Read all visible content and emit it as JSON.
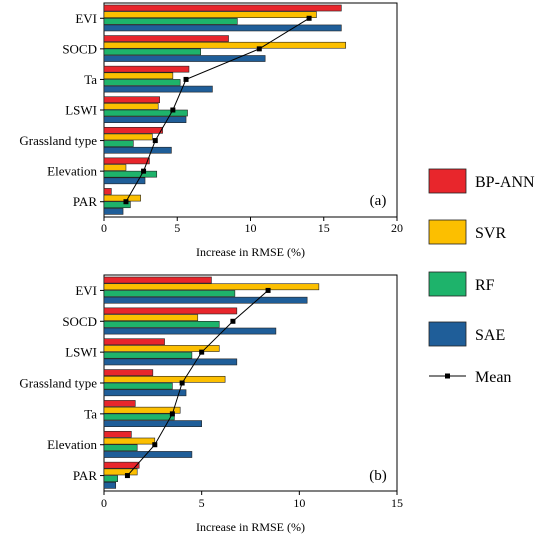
{
  "figure": {
    "legend": [
      {
        "name": "BP-ANN",
        "color": "#e8262c"
      },
      {
        "name": "SVR",
        "color": "#fcbf00"
      },
      {
        "name": "RF",
        "color": "#1eb36b"
      },
      {
        "name": "SAE",
        "color": "#1f5e99"
      },
      {
        "name": "Mean",
        "color": "#000000"
      }
    ]
  },
  "chart_data": [
    {
      "type": "bar",
      "orientation": "horizontal",
      "panel_label": "(a)",
      "xlabel": "Increase in RMSE (%)",
      "xlim": [
        0,
        20
      ],
      "xticks": [
        0,
        5,
        10,
        15,
        20
      ],
      "categories": [
        "EVI",
        "SOCD",
        "Ta",
        "LSWI",
        "Grassland type",
        "Elevation",
        "PAR"
      ],
      "series": [
        {
          "name": "BP-ANN",
          "color": "#e8262c",
          "values": [
            16.2,
            8.5,
            5.8,
            3.8,
            4.0,
            3.1,
            0.5
          ]
        },
        {
          "name": "SVR",
          "color": "#fcbf00",
          "values": [
            14.5,
            16.5,
            4.7,
            3.7,
            3.3,
            1.5,
            2.5
          ]
        },
        {
          "name": "RF",
          "color": "#1eb36b",
          "values": [
            9.1,
            6.6,
            5.2,
            5.7,
            2.0,
            3.6,
            1.8
          ]
        },
        {
          "name": "SAE",
          "color": "#1f5e99",
          "values": [
            16.2,
            11.0,
            7.4,
            5.6,
            4.6,
            2.8,
            1.3
          ]
        },
        {
          "name": "Mean",
          "color": "#000000",
          "kind": "line",
          "values": [
            14.0,
            10.6,
            5.6,
            4.7,
            3.5,
            2.7,
            1.5
          ]
        }
      ]
    },
    {
      "type": "bar",
      "orientation": "horizontal",
      "panel_label": "(b)",
      "xlabel": "Increase in RMSE (%)",
      "xlim": [
        0,
        15
      ],
      "xticks": [
        0,
        5,
        10,
        15
      ],
      "categories": [
        "EVI",
        "SOCD",
        "LSWI",
        "Grassland type",
        "Ta",
        "Elevation",
        "PAR"
      ],
      "series": [
        {
          "name": "BP-ANN",
          "color": "#e8262c",
          "values": [
            5.5,
            6.8,
            3.1,
            2.5,
            1.6,
            1.4,
            1.8
          ]
        },
        {
          "name": "SVR",
          "color": "#fcbf00",
          "values": [
            11.0,
            4.8,
            5.9,
            6.2,
            3.9,
            2.6,
            1.7
          ]
        },
        {
          "name": "RF",
          "color": "#1eb36b",
          "values": [
            6.7,
            5.9,
            4.5,
            3.5,
            3.6,
            1.7,
            0.7
          ]
        },
        {
          "name": "SAE",
          "color": "#1f5e99",
          "values": [
            10.4,
            8.8,
            6.8,
            4.2,
            5.0,
            4.5,
            0.6
          ]
        },
        {
          "name": "Mean",
          "color": "#000000",
          "kind": "line",
          "values": [
            8.4,
            6.6,
            5.0,
            4.0,
            3.5,
            2.6,
            1.2
          ]
        }
      ]
    }
  ]
}
